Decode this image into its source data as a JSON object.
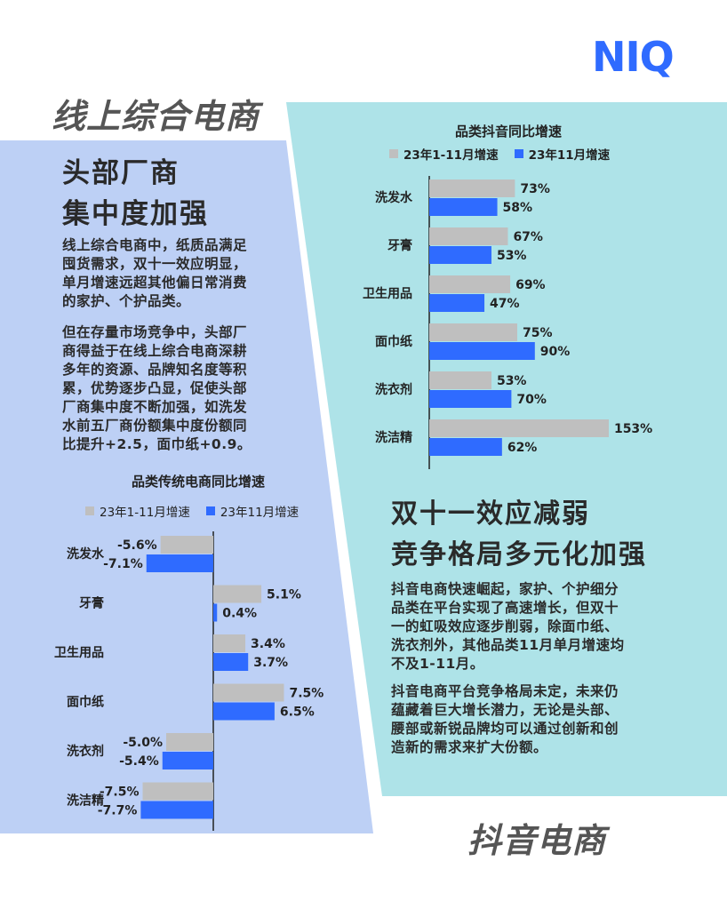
{
  "logo": "NIQ",
  "colors": {
    "left_panel": "#bdd0f5",
    "right_panel": "#aee3e8",
    "bar_gray": "#bfbfbf",
    "bar_blue": "#2f6bff",
    "logo": "#2f6bff"
  },
  "left": {
    "section_title": "线上综合电商",
    "heading_lines": [
      "头部厂商",
      "集中度加强"
    ],
    "paragraph1": [
      "线上综合电商中，纸质品满足",
      "囤货需求，双十一效应明显，",
      "单月增速远超其他偏日常消费",
      "的家护、个护品类。"
    ],
    "paragraph2": [
      "但在存量市场竞争中，头部厂",
      "商得益于在线上综合电商深耕",
      "多年的资源、品牌知名度等积",
      "累，优势逐步凸显，促使头部",
      "厂商集中度不断加强，如洗发",
      "水前五厂商份额集中度份额同",
      "比提升+2.5，面巾纸+0.9。"
    ]
  },
  "right": {
    "section_title": "抖音电商",
    "heading_lines": [
      "双十一效应减弱",
      "竞争格局多元化加强"
    ],
    "paragraph1": [
      "抖音电商快速崛起，家护、个护细分",
      "品类在平台实现了高速增长，但双十",
      "一的虹吸效应逐步削弱，除面巾纸、",
      "洗衣剂外，其他品类11月单月增速均",
      "不及1-11月。"
    ],
    "paragraph2": [
      "抖音电商平台竞争格局未定，未来仍",
      "蕴藏着巨大增长潜力，无论是头部、",
      "腰部或新锐品牌均可以通过创新和创",
      "造新的需求来扩大份额。"
    ]
  },
  "chart_data": [
    {
      "type": "bar",
      "orientation": "horizontal",
      "title": "品类抖音同比增速",
      "categories": [
        "洗发水",
        "牙膏",
        "卫生用品",
        "面巾纸",
        "洗衣剂",
        "洗洁精"
      ],
      "series": [
        {
          "name": "23年1-11月增速",
          "values": [
            73,
            67,
            69,
            75,
            53,
            153
          ],
          "labels": [
            "73%",
            "67%",
            "69%",
            "75%",
            "53%",
            "153%"
          ]
        },
        {
          "name": "23年11月增速",
          "values": [
            58,
            53,
            47,
            90,
            70,
            62
          ],
          "labels": [
            "58%",
            "53%",
            "47%",
            "90%",
            "70%",
            "62%"
          ]
        }
      ],
      "legend": "top",
      "grid": false
    },
    {
      "type": "bar",
      "orientation": "horizontal",
      "title": "品类传统电商同比增速",
      "categories": [
        "洗发水",
        "牙膏",
        "卫生用品",
        "面巾纸",
        "洗衣剂",
        "洗洁精"
      ],
      "series": [
        {
          "name": "23年1-11月增速",
          "values": [
            -5.6,
            5.1,
            3.4,
            7.5,
            -5.0,
            -7.5
          ],
          "labels": [
            "-5.6%",
            "5.1%",
            "3.4%",
            "7.5%",
            "-5.0%",
            "-7.5%"
          ]
        },
        {
          "name": "23年11月增速",
          "values": [
            -7.1,
            0.4,
            3.7,
            6.5,
            -5.4,
            -7.7
          ],
          "labels": [
            "-7.1%",
            "0.4%",
            "3.7%",
            "6.5%",
            "-5.4%",
            "-7.7%"
          ]
        }
      ],
      "legend": "top",
      "grid": false
    }
  ]
}
